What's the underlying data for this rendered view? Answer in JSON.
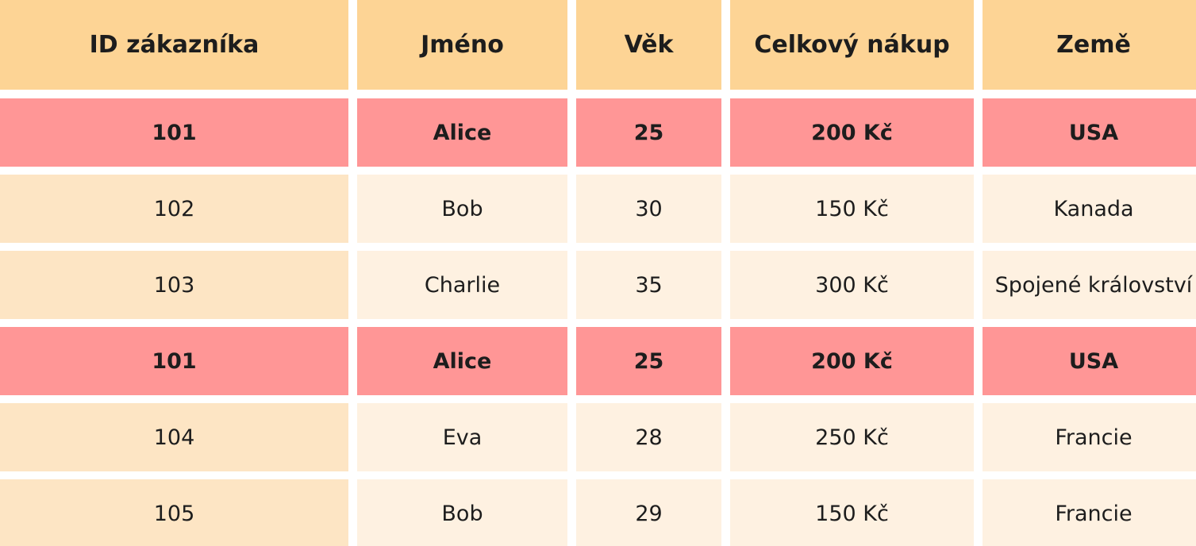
{
  "table": {
    "columns": [
      "ID zákazníka",
      "Jméno",
      "Věk",
      "Celkový nákup",
      "Země"
    ],
    "rows": [
      {
        "cells": [
          "101",
          "Alice",
          "25",
          "200 Kč",
          "USA"
        ],
        "highlight": true
      },
      {
        "cells": [
          "102",
          "Bob",
          "30",
          "150 Kč",
          "Kanada"
        ],
        "highlight": false
      },
      {
        "cells": [
          "103",
          "Charlie",
          "35",
          "300 Kč",
          "Spojené království"
        ],
        "highlight": false
      },
      {
        "cells": [
          "101",
          "Alice",
          "25",
          "200 Kč",
          "USA"
        ],
        "highlight": true
      },
      {
        "cells": [
          "104",
          "Eva",
          "28",
          "250 Kč",
          "Francie"
        ],
        "highlight": false
      },
      {
        "cells": [
          "105",
          "Bob",
          "29",
          "150 Kč",
          "Francie"
        ],
        "highlight": false
      }
    ]
  }
}
